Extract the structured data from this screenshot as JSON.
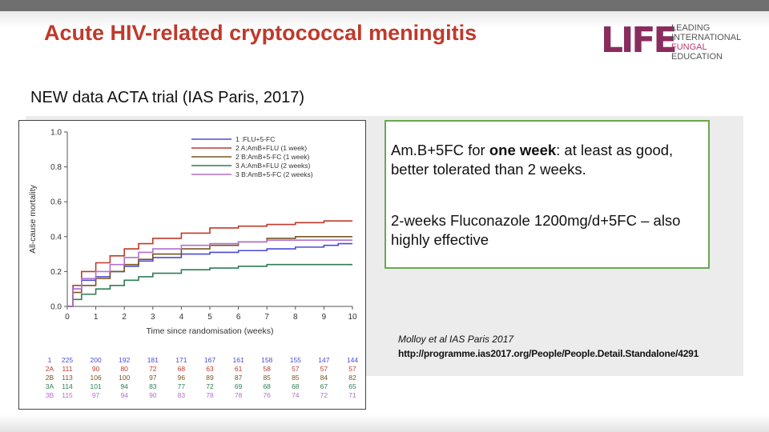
{
  "slide": {
    "title": "Acute HIV-related cryptococcal meningitis",
    "subtitle": "NEW data ACTA trial (IAS Paris, 2017)"
  },
  "logo": {
    "mark": "LIFE",
    "lines": [
      "LEADING",
      "INTERNATIONAL",
      "FUNGAL",
      "EDUCATION"
    ],
    "colors": {
      "mark": "#8a2c5e",
      "fungal_line": "#b83c6e"
    }
  },
  "callout": {
    "point1_prefix": "Am.B+5FC for ",
    "point1_bold": "one week",
    "point1_rest": ": at least as good, better tolerated than 2 weeks.",
    "point2": "2-weeks Fluconazole 1200mg/d+5FC – also highly effective"
  },
  "reference": {
    "line1": "Molloy et al IAS Paris 2017",
    "line2": "http://programme.ias2017.org/People/People.Detail.Standalone/4291"
  },
  "colors": {
    "title": "#c0392b",
    "callout_border": "#6aa84f",
    "panel": "#ececec"
  },
  "chart_data": {
    "type": "line",
    "xlabel": "Time since randomisation (weeks)",
    "ylabel": "All-cause mortality",
    "xlim": [
      0,
      10
    ],
    "ylim": [
      0,
      1.0
    ],
    "xticks": [
      0,
      1,
      2,
      3,
      4,
      5,
      6,
      7,
      8,
      9,
      10
    ],
    "yticks": [
      0.0,
      0.2,
      0.4,
      0.6,
      0.8,
      1.0
    ],
    "grid": false,
    "legend_position": "top-right",
    "series": [
      {
        "name": "1  :FLU+5-FC",
        "color": "#4b4bd8",
        "x": [
          0,
          0.2,
          0.5,
          1,
          1.5,
          2,
          2.5,
          3,
          4,
          5,
          6,
          7,
          8,
          9,
          9.5,
          10
        ],
        "y": [
          0,
          0.1,
          0.15,
          0.17,
          0.2,
          0.23,
          0.26,
          0.28,
          0.3,
          0.31,
          0.32,
          0.33,
          0.34,
          0.35,
          0.36,
          0.36
        ]
      },
      {
        "name": "2 A:AmB+FLU (1 week)",
        "color": "#c0392b",
        "x": [
          0,
          0.2,
          0.5,
          1,
          1.5,
          2,
          2.5,
          3,
          4,
          5,
          6,
          7,
          8,
          9,
          10
        ],
        "y": [
          0,
          0.12,
          0.2,
          0.25,
          0.29,
          0.33,
          0.36,
          0.39,
          0.42,
          0.45,
          0.46,
          0.47,
          0.48,
          0.49,
          0.49
        ]
      },
      {
        "name": "2 B:AmB+5-FC (1 week)",
        "color": "#7a5520",
        "x": [
          0,
          0.2,
          0.5,
          1,
          1.5,
          2,
          2.5,
          3,
          4,
          5,
          6,
          7,
          8,
          9,
          10
        ],
        "y": [
          0,
          0.08,
          0.12,
          0.16,
          0.2,
          0.24,
          0.27,
          0.3,
          0.33,
          0.35,
          0.37,
          0.39,
          0.4,
          0.4,
          0.4
        ]
      },
      {
        "name": "3 A:AmB+FLU (2 weeks)",
        "color": "#2e7d55",
        "x": [
          0,
          0.2,
          0.5,
          1,
          1.5,
          2,
          2.5,
          3,
          4,
          5,
          6,
          7,
          8,
          9,
          10
        ],
        "y": [
          0,
          0.04,
          0.07,
          0.1,
          0.12,
          0.15,
          0.17,
          0.19,
          0.21,
          0.22,
          0.23,
          0.24,
          0.24,
          0.24,
          0.24
        ]
      },
      {
        "name": "3 B:AmB+5-FC (2 weeks)",
        "color": "#b26fd0",
        "x": [
          0,
          0.2,
          0.5,
          1,
          1.5,
          2,
          2.5,
          3,
          4,
          5,
          6,
          7,
          8,
          9,
          10
        ],
        "y": [
          0,
          0.1,
          0.16,
          0.2,
          0.24,
          0.28,
          0.31,
          0.33,
          0.35,
          0.36,
          0.37,
          0.38,
          0.38,
          0.38,
          0.38
        ]
      }
    ],
    "risk_table": {
      "times": [
        0,
        1,
        2,
        3,
        4,
        5,
        6,
        7,
        8,
        9,
        10
      ],
      "rows": [
        {
          "label": "1",
          "color": "#4b4bd8",
          "values": [
            "225",
            "200",
            "192",
            "181",
            "171",
            "167",
            "161",
            "158",
            "155",
            "147",
            "144"
          ]
        },
        {
          "label": "2A",
          "color": "#c0392b",
          "values": [
            "111",
            "90",
            "80",
            "72",
            "68",
            "63",
            "61",
            "58",
            "57",
            "57",
            "57"
          ]
        },
        {
          "label": "2B",
          "color": "#7a5520",
          "values": [
            "113",
            "106",
            "100",
            "97",
            "96",
            "89",
            "87",
            "85",
            "85",
            "84",
            "82"
          ]
        },
        {
          "label": "3A",
          "color": "#2e7d55",
          "values": [
            "114",
            "101",
            "94",
            "83",
            "77",
            "72",
            "69",
            "68",
            "68",
            "67",
            "65"
          ]
        },
        {
          "label": "3B",
          "color": "#b26fd0",
          "values": [
            "115",
            "97",
            "94",
            "90",
            "83",
            "78",
            "78",
            "76",
            "74",
            "72",
            "71"
          ]
        }
      ]
    }
  }
}
